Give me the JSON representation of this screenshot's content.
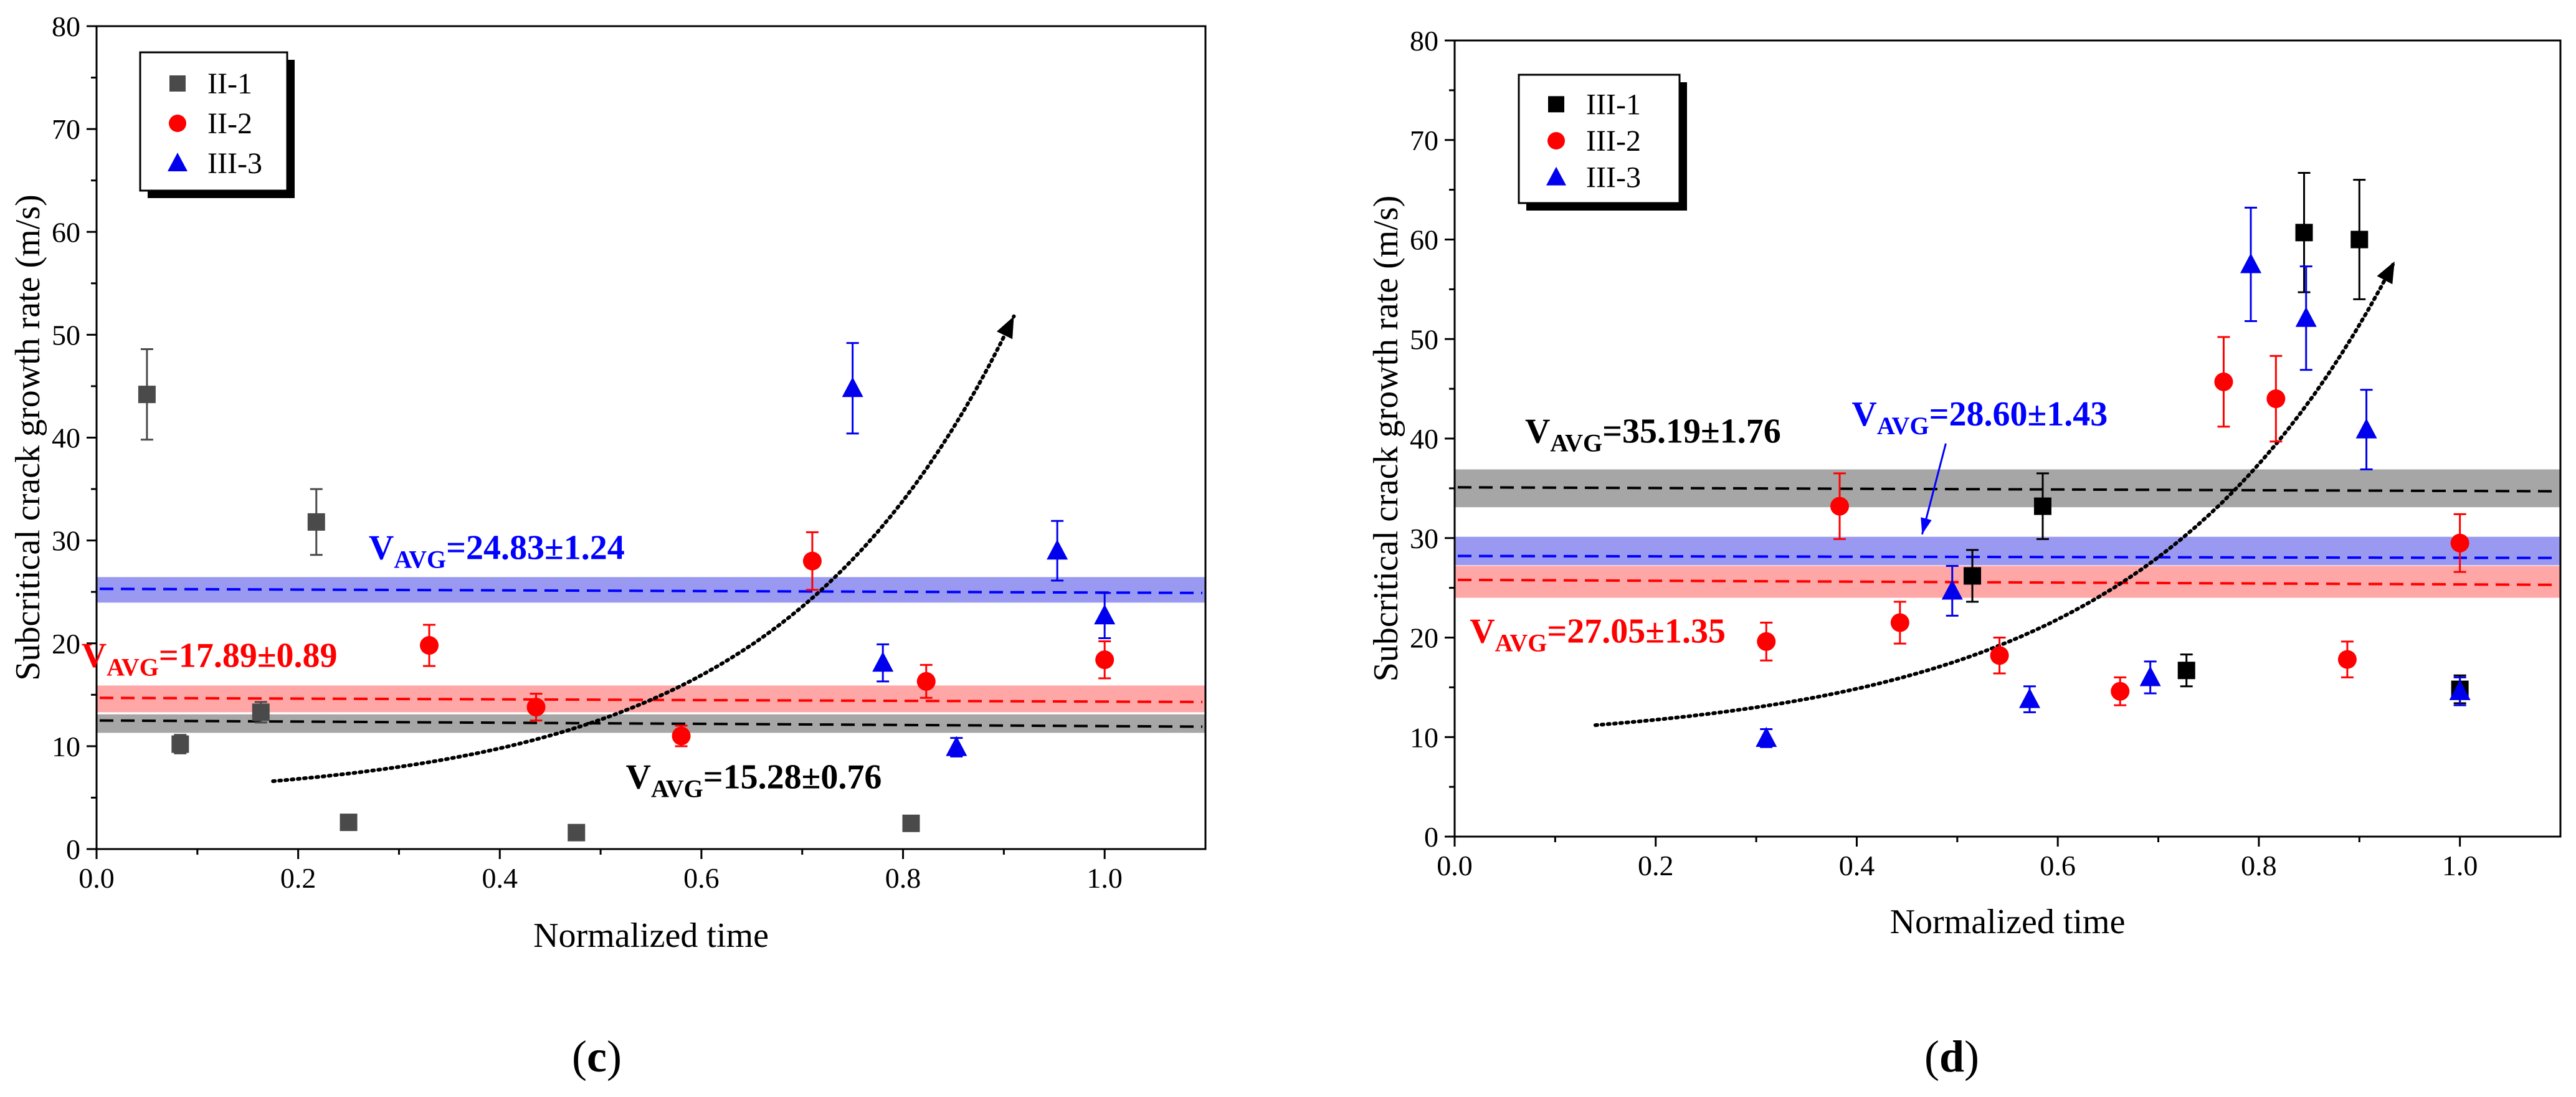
{
  "chart_data": [
    {
      "type": "scatter",
      "panel_label": "(c)",
      "xlabel": "Normalized time",
      "ylabel": "Subcritical crack growth rate (m/s)",
      "xlim": [
        0.0,
        1.1
      ],
      "ylim": [
        0,
        80
      ],
      "xticks": [
        0.0,
        0.2,
        0.4,
        0.6,
        0.8,
        1.0
      ],
      "yticks": [
        0,
        10,
        20,
        30,
        40,
        50,
        60,
        70,
        80
      ],
      "grid": false,
      "legend_position": "top-left",
      "series": [
        {
          "name": "II-1",
          "marker": "square",
          "color": "#4a4a4a",
          "points": [
            {
              "x": 0.05,
              "y": 44.2,
              "err": 4.4
            },
            {
              "x": 0.083,
              "y": 10.2,
              "err": 0.9
            },
            {
              "x": 0.163,
              "y": 13.3,
              "err": 1.0
            },
            {
              "x": 0.218,
              "y": 31.8,
              "err": 3.2
            },
            {
              "x": 0.25,
              "y": 2.6,
              "err": 0
            },
            {
              "x": 0.476,
              "y": 1.6,
              "err": 0
            },
            {
              "x": 0.808,
              "y": 2.5,
              "err": 0
            }
          ]
        },
        {
          "name": "II-2",
          "marker": "circle",
          "color": "#ff0000",
          "points": [
            {
              "x": 0.33,
              "y": 19.8,
              "err": 2.0
            },
            {
              "x": 0.436,
              "y": 13.8,
              "err": 1.3
            },
            {
              "x": 0.58,
              "y": 11.0,
              "err": 1.0
            },
            {
              "x": 0.71,
              "y": 28.0,
              "err": 2.8
            },
            {
              "x": 0.823,
              "y": 16.3,
              "err": 1.6
            },
            {
              "x": 1.0,
              "y": 18.4,
              "err": 1.8
            }
          ]
        },
        {
          "name": "III-3",
          "marker": "triangle",
          "color": "#0000ee",
          "points": [
            {
              "x": 0.75,
              "y": 44.8,
              "err": 4.4
            },
            {
              "x": 0.78,
              "y": 18.1,
              "err": 1.8
            },
            {
              "x": 0.853,
              "y": 9.9,
              "err": 0.9
            },
            {
              "x": 0.953,
              "y": 29.0,
              "err": 2.9
            },
            {
              "x": 1.0,
              "y": 22.7,
              "err": 2.2
            }
          ]
        }
      ],
      "bands": [
        {
          "center": 25.2,
          "half_width": 1.24,
          "line_start": 25.3,
          "line_end": 24.9,
          "color": "#0000ff",
          "fill": "#7777ee"
        },
        {
          "center": 14.6,
          "half_width": 1.3,
          "line_start": 14.7,
          "line_end": 14.3,
          "color": "#ff0000",
          "fill": "#ff8888"
        },
        {
          "center": 12.2,
          "half_width": 0.9,
          "line_start": 12.5,
          "line_end": 11.9,
          "color": "#000000",
          "fill": "#888888"
        }
      ],
      "annotations": [
        {
          "main": "V",
          "sub": "AVG",
          "value": "=24.83±1.24",
          "color": "#0000ff",
          "x": 0.27,
          "y": 28.2
        },
        {
          "main": "V",
          "sub": "AVG",
          "value": "=17.89±0.89",
          "color": "#ff0000",
          "x": -0.015,
          "y": 17.7
        },
        {
          "main": "V",
          "sub": "AVG",
          "value": "=15.28±0.76",
          "color": "#000000",
          "x": 0.525,
          "y": 5.9
        }
      ],
      "trend": {
        "x0": 0.175,
        "y0": 6.6,
        "x1": 0.91,
        "y1": 51.8,
        "k": 3.2
      }
    },
    {
      "type": "scatter",
      "panel_label": "(d)",
      "xlabel": "Normalized time",
      "ylabel": "Subcritical crack growth rate (m/s)",
      "xlim": [
        0.0,
        1.1
      ],
      "ylim": [
        0,
        80
      ],
      "xticks": [
        0.0,
        0.2,
        0.4,
        0.6,
        0.8,
        1.0
      ],
      "yticks": [
        0,
        10,
        20,
        30,
        40,
        50,
        60,
        70,
        80
      ],
      "grid": false,
      "legend_position": "top-left",
      "series": [
        {
          "name": "III-1",
          "marker": "square",
          "color": "#000000",
          "points": [
            {
              "x": 0.515,
              "y": 26.2,
              "err": 2.6
            },
            {
              "x": 0.585,
              "y": 33.2,
              "err": 3.3
            },
            {
              "x": 0.728,
              "y": 16.7,
              "err": 1.6
            },
            {
              "x": 0.845,
              "y": 60.7,
              "err": 6.0
            },
            {
              "x": 0.9,
              "y": 60.0,
              "err": 6.0
            },
            {
              "x": 1.0,
              "y": 14.8,
              "err": 1.4
            }
          ]
        },
        {
          "name": "III-2",
          "marker": "circle",
          "color": "#ff0000",
          "points": [
            {
              "x": 0.31,
              "y": 19.6,
              "err": 1.9
            },
            {
              "x": 0.383,
              "y": 33.2,
              "err": 3.3
            },
            {
              "x": 0.443,
              "y": 21.5,
              "err": 2.1
            },
            {
              "x": 0.542,
              "y": 18.2,
              "err": 1.8
            },
            {
              "x": 0.662,
              "y": 14.6,
              "err": 1.4
            },
            {
              "x": 0.765,
              "y": 45.7,
              "err": 4.5
            },
            {
              "x": 0.817,
              "y": 44.0,
              "err": 4.3
            },
            {
              "x": 0.888,
              "y": 17.8,
              "err": 1.8
            },
            {
              "x": 1.0,
              "y": 29.5,
              "err": 2.9
            }
          ]
        },
        {
          "name": "III-3",
          "marker": "triangle",
          "color": "#0000ee",
          "points": [
            {
              "x": 0.31,
              "y": 9.9,
              "err": 0.9
            },
            {
              "x": 0.495,
              "y": 24.7,
              "err": 2.5
            },
            {
              "x": 0.572,
              "y": 13.8,
              "err": 1.3
            },
            {
              "x": 0.692,
              "y": 16.0,
              "err": 1.6
            },
            {
              "x": 0.792,
              "y": 57.5,
              "err": 5.7
            },
            {
              "x": 0.847,
              "y": 52.1,
              "err": 5.2
            },
            {
              "x": 0.907,
              "y": 40.9,
              "err": 4.0
            },
            {
              "x": 1.0,
              "y": 14.6,
              "err": 1.4
            }
          ]
        }
      ],
      "bands": [
        {
          "center": 35.0,
          "half_width": 1.9,
          "line_start": 35.1,
          "line_end": 34.7,
          "color": "#000000",
          "fill": "#888888"
        },
        {
          "center": 28.7,
          "half_width": 1.43,
          "line_start": 28.2,
          "line_end": 28.0,
          "color": "#0000ff",
          "fill": "#7777ee"
        },
        {
          "center": 25.6,
          "half_width": 1.6,
          "line_start": 25.8,
          "line_end": 25.3,
          "color": "#ff0000",
          "fill": "#ff8888"
        }
      ],
      "annotations": [
        {
          "main": "V",
          "sub": "AVG",
          "value": "=35.19±1.76",
          "color": "#000000",
          "x": 0.07,
          "y": 39.6
        },
        {
          "main": "V",
          "sub": "AVG",
          "value": "=28.60±1.43",
          "color": "#0000ff",
          "x": 0.395,
          "y": 41.3
        },
        {
          "main": "V",
          "sub": "AVG",
          "value": "=27.05±1.35",
          "color": "#ff0000",
          "x": 0.015,
          "y": 19.5
        }
      ],
      "arrow": {
        "x0": 0.47,
        "y0": 39.5,
        "x1": 0.47,
        "y1": 30.0,
        "color": "#0000ff"
      },
      "trend": {
        "x0": 0.14,
        "y0": 11.2,
        "x1": 0.935,
        "y1": 57.8,
        "k": 3.2
      }
    }
  ]
}
